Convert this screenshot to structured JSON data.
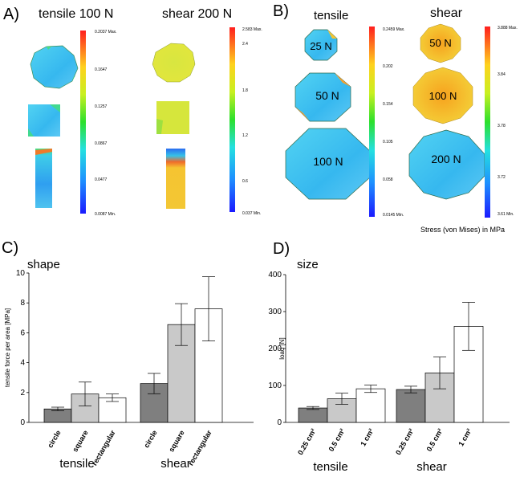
{
  "panelA": {
    "letter": "A)",
    "title_tensile": "tensile 100 N",
    "title_shear": "shear 200 N",
    "tensile_scale": {
      "max": "0.2037 Max.",
      "ticks": [
        "0.1647",
        "0.1257",
        "0.0867",
        "0.0477"
      ],
      "min": "0.0087 Min."
    },
    "shear_scale": {
      "max": "2.583 Max.",
      "ticks": [
        "2.4",
        "1.8",
        "1.2",
        "0.6"
      ],
      "min": "0.037 Min."
    }
  },
  "panelB": {
    "letter": "B)",
    "title_tensile": "tensile",
    "title_shear": "shear",
    "tensile_labels": [
      "25 N",
      "50 N",
      "100 N"
    ],
    "shear_labels": [
      "50 N",
      "100 N",
      "200 N"
    ],
    "tensile_scale": {
      "max": "0.2459 Max.",
      "ticks": [
        "0.202",
        "0.154",
        "0.105",
        "0.058"
      ],
      "min": "0.0145 Min."
    },
    "shear_scale": {
      "max": "3.888 Max.",
      "ticks": [
        "3.84",
        "3.78",
        "3.72",
        "3.66"
      ],
      "min": "3.61 Min."
    },
    "stress_caption": "Stress (von Mises) in MPa"
  },
  "colors": {
    "dark_bar": "#7f7f7f",
    "light_bar": "#c9c9c9",
    "white_bar": "#ffffff",
    "fem_blue": "#3cc8f0",
    "fem_yellow": "#f2e23a",
    "fem_orange": "#f5c431"
  },
  "chart_data": [
    {
      "type": "bar",
      "letter": "C)",
      "title": "shape",
      "ylabel": "tensile force per area [MPa]",
      "ylim": [
        0,
        10
      ],
      "yticks": [
        "0",
        "2",
        "4",
        "6",
        "8",
        "10"
      ],
      "group_labels": [
        "tensile",
        "shear"
      ],
      "categories": [
        "circle",
        "square",
        "rectangular"
      ],
      "series": [
        {
          "name": "tensile",
          "values": [
            0.9,
            1.9,
            1.65
          ],
          "errors": [
            0.12,
            0.8,
            0.25
          ]
        },
        {
          "name": "shear",
          "values": [
            2.6,
            6.55,
            7.6
          ],
          "errors": [
            0.68,
            1.4,
            2.15
          ]
        }
      ]
    },
    {
      "type": "bar",
      "letter": "D)",
      "title": "size",
      "ylabel": "load [N]",
      "ylim": [
        0,
        400
      ],
      "yticks": [
        "0",
        "100",
        "200",
        "300",
        "400"
      ],
      "group_labels": [
        "tensile",
        "shear"
      ],
      "categories": [
        "0.25 cm²",
        "0.5 cm²",
        "1 cm²"
      ],
      "series": [
        {
          "name": "tensile",
          "values": [
            39,
            64,
            91
          ],
          "errors": [
            4,
            15,
            10
          ]
        },
        {
          "name": "shear",
          "values": [
            89,
            134,
            260
          ],
          "errors": [
            9,
            43,
            65
          ]
        }
      ]
    }
  ]
}
